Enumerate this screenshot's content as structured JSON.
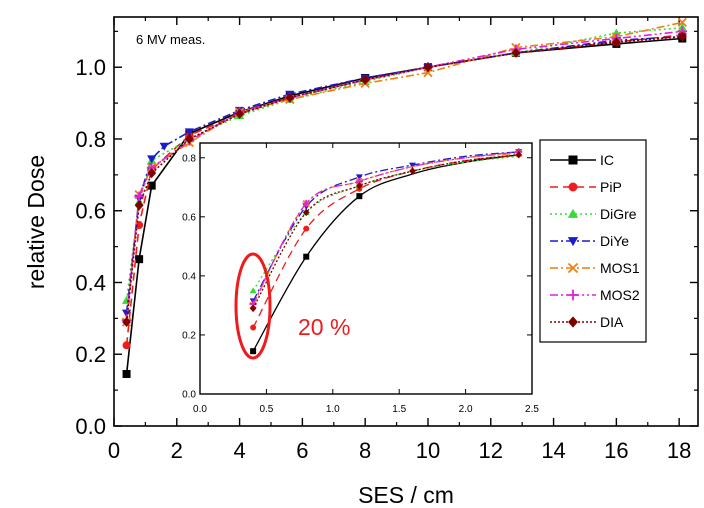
{
  "chart_data": [
    {
      "type": "line",
      "title": "",
      "annotation": "6 MV meas.",
      "xlabel": "SES / cm",
      "ylabel": "relative Dose",
      "xlim": [
        0,
        18.6
      ],
      "ylim": [
        0,
        1.14
      ],
      "xticks": [
        0,
        2,
        4,
        6,
        8,
        10,
        12,
        14,
        16,
        18
      ],
      "yticks": [
        0.0,
        0.2,
        0.4,
        0.6,
        0.8,
        1.0
      ],
      "ytick_labels": [
        "0.0",
        "0.2",
        "0.4",
        "0.6",
        "0.8",
        "1.0"
      ],
      "legend_position": "right",
      "series": [
        {
          "name": "IC",
          "color": "#000000",
          "marker": "square",
          "dash": "",
          "x": [
            0.4,
            0.8,
            1.2,
            2.4,
            4.0,
            5.6,
            8.0,
            10.0,
            12.8,
            16.0,
            18.1
          ],
          "y": [
            0.145,
            0.465,
            0.67,
            0.815,
            0.875,
            0.92,
            0.97,
            1.0,
            1.04,
            1.065,
            1.08
          ]
        },
        {
          "name": "PiP",
          "color": "#ee1c1c",
          "marker": "circle",
          "dash": "8,5",
          "x": [
            0.4,
            0.8,
            1.2,
            2.4,
            4.0,
            5.6,
            8.0,
            10.0,
            12.8,
            16.0,
            18.1
          ],
          "y": [
            0.225,
            0.56,
            0.715,
            0.81,
            0.87,
            0.915,
            0.965,
            1.0,
            1.04,
            1.07,
            1.09
          ]
        },
        {
          "name": "DiGre",
          "color": "#33dd33",
          "marker": "triangle",
          "dash": "2,3",
          "x": [
            0.4,
            0.8,
            1.2,
            2.4,
            4.0,
            5.6,
            8.0,
            10.0,
            12.8,
            16.0,
            18.1
          ],
          "y": [
            0.35,
            0.625,
            0.74,
            0.8,
            0.865,
            0.91,
            0.96,
            1.0,
            1.04,
            1.095,
            1.11
          ]
        },
        {
          "name": "DiYe",
          "color": "#1c1cc8",
          "marker": "triangle-down",
          "dash": "8,3,2,3",
          "x": [
            0.4,
            0.8,
            1.2,
            1.6,
            2.4,
            4.0,
            5.6,
            8.0,
            10.0,
            12.8,
            16.0,
            18.1
          ],
          "y": [
            0.315,
            0.635,
            0.745,
            0.78,
            0.82,
            0.88,
            0.925,
            0.97,
            1.0,
            1.04,
            1.075,
            1.085
          ]
        },
        {
          "name": "MOS1",
          "color": "#f07f10",
          "marker": "x",
          "dash": "8,3,2,3",
          "x": [
            0.4,
            0.8,
            1.2,
            2.4,
            4.0,
            5.6,
            8.0,
            10.0,
            12.8,
            16.0,
            18.1
          ],
          "y": [
            0.29,
            0.645,
            0.72,
            0.79,
            0.875,
            0.91,
            0.955,
            0.985,
            1.055,
            1.085,
            1.125
          ]
        },
        {
          "name": "MOS2",
          "color": "#dd22dd",
          "marker": "plus",
          "dash": "8,3,2,3,2,3",
          "x": [
            0.4,
            0.8,
            1.2,
            2.4,
            4.0,
            5.6,
            8.0,
            10.0,
            12.8,
            16.0,
            18.1
          ],
          "y": [
            0.295,
            0.64,
            0.72,
            0.795,
            0.875,
            0.915,
            0.965,
            1.0,
            1.05,
            1.08,
            1.1
          ]
        },
        {
          "name": "DIA",
          "color": "#800000",
          "marker": "diamond",
          "dash": "2,2",
          "x": [
            0.4,
            0.8,
            1.2,
            2.4,
            4.0,
            5.6,
            8.0,
            10.0,
            12.8,
            16.0,
            18.1
          ],
          "y": [
            0.29,
            0.615,
            0.705,
            0.8,
            0.87,
            0.915,
            0.965,
            1.0,
            1.04,
            1.07,
            1.085
          ]
        }
      ]
    },
    {
      "type": "line",
      "title": "",
      "xlabel": "",
      "ylabel": "",
      "xlim": [
        0,
        2.5
      ],
      "ylim": [
        0,
        0.85
      ],
      "xticks": [
        0,
        0.5,
        1.0,
        1.5,
        2.0,
        2.5
      ],
      "xtick_labels": [
        "0.0",
        "0.5",
        "1.0",
        "1.5",
        "2.0",
        "2.5"
      ],
      "yticks": [
        0.0,
        0.2,
        0.4,
        0.6,
        0.8
      ],
      "ytick_labels": [
        "0.0",
        "0.2",
        "0.4",
        "0.6",
        "0.8"
      ],
      "annotation": "20 %",
      "annotation_color": "#ee1c1c",
      "series": [
        {
          "name": "IC",
          "color": "#000000",
          "marker": "square",
          "dash": "",
          "x": [
            0.4,
            0.8,
            1.2,
            1.6,
            2.0,
            2.4
          ],
          "y": [
            0.145,
            0.465,
            0.67,
            0.745,
            0.785,
            0.81
          ],
          "mx": [
            0.4,
            0.8,
            1.2
          ],
          "my": [
            0.145,
            0.465,
            0.67
          ]
        },
        {
          "name": "PiP",
          "color": "#ee1c1c",
          "marker": "circle",
          "dash": "8,5",
          "x": [
            0.4,
            0.8,
            1.2,
            1.6,
            2.0,
            2.4
          ],
          "y": [
            0.225,
            0.56,
            0.695,
            0.755,
            0.79,
            0.81
          ],
          "mx": [
            0.4,
            0.8,
            1.2
          ],
          "my": [
            0.225,
            0.56,
            0.695
          ]
        },
        {
          "name": "DiGre",
          "color": "#33dd33",
          "marker": "triangle",
          "dash": "2,3",
          "x": [
            0.4,
            0.8,
            1.2,
            1.6,
            2.0,
            2.4
          ],
          "y": [
            0.35,
            0.615,
            0.705,
            0.755,
            0.785,
            0.805
          ],
          "mx": [
            0.4,
            0.8,
            1.2
          ],
          "my": [
            0.35,
            0.615,
            0.705
          ]
        },
        {
          "name": "DiYe",
          "color": "#1c1cc8",
          "marker": "triangle-down",
          "dash": "8,3,2,3",
          "x": [
            0.4,
            0.8,
            1.2,
            1.6,
            2.0,
            2.4
          ],
          "y": [
            0.315,
            0.635,
            0.735,
            0.775,
            0.805,
            0.82
          ],
          "mx": [
            0.4,
            0.8,
            1.2,
            1.6,
            2.4
          ],
          "my": [
            0.315,
            0.635,
            0.735,
            0.775,
            0.82
          ]
        },
        {
          "name": "MOS1",
          "color": "#f07f10",
          "marker": "x",
          "dash": "8,3,2,3",
          "x": [
            0.4,
            0.8,
            1.2,
            1.6,
            2.0,
            2.4
          ],
          "y": [
            0.3,
            0.645,
            0.72,
            0.77,
            0.8,
            0.815
          ],
          "mx": [
            0.4,
            0.8,
            1.2,
            2.4
          ],
          "my": [
            0.3,
            0.645,
            0.72,
            0.815
          ]
        },
        {
          "name": "MOS2",
          "color": "#dd22dd",
          "marker": "plus",
          "dash": "8,3,2,3,2,3",
          "x": [
            0.4,
            0.8,
            1.2,
            1.6,
            2.0,
            2.4
          ],
          "y": [
            0.305,
            0.645,
            0.72,
            0.77,
            0.8,
            0.82
          ],
          "mx": [
            0.4,
            0.8,
            1.2,
            2.4
          ],
          "my": [
            0.305,
            0.645,
            0.72,
            0.82
          ]
        },
        {
          "name": "DIA",
          "color": "#800000",
          "marker": "diamond",
          "dash": "2,2",
          "x": [
            0.4,
            0.8,
            1.2,
            1.6,
            2.0,
            2.4
          ],
          "y": [
            0.29,
            0.615,
            0.705,
            0.755,
            0.79,
            0.81
          ],
          "mx": [
            0.4,
            0.8,
            1.2,
            1.6,
            2.4
          ],
          "my": [
            0.29,
            0.615,
            0.705,
            0.755,
            0.81
          ]
        }
      ]
    }
  ]
}
